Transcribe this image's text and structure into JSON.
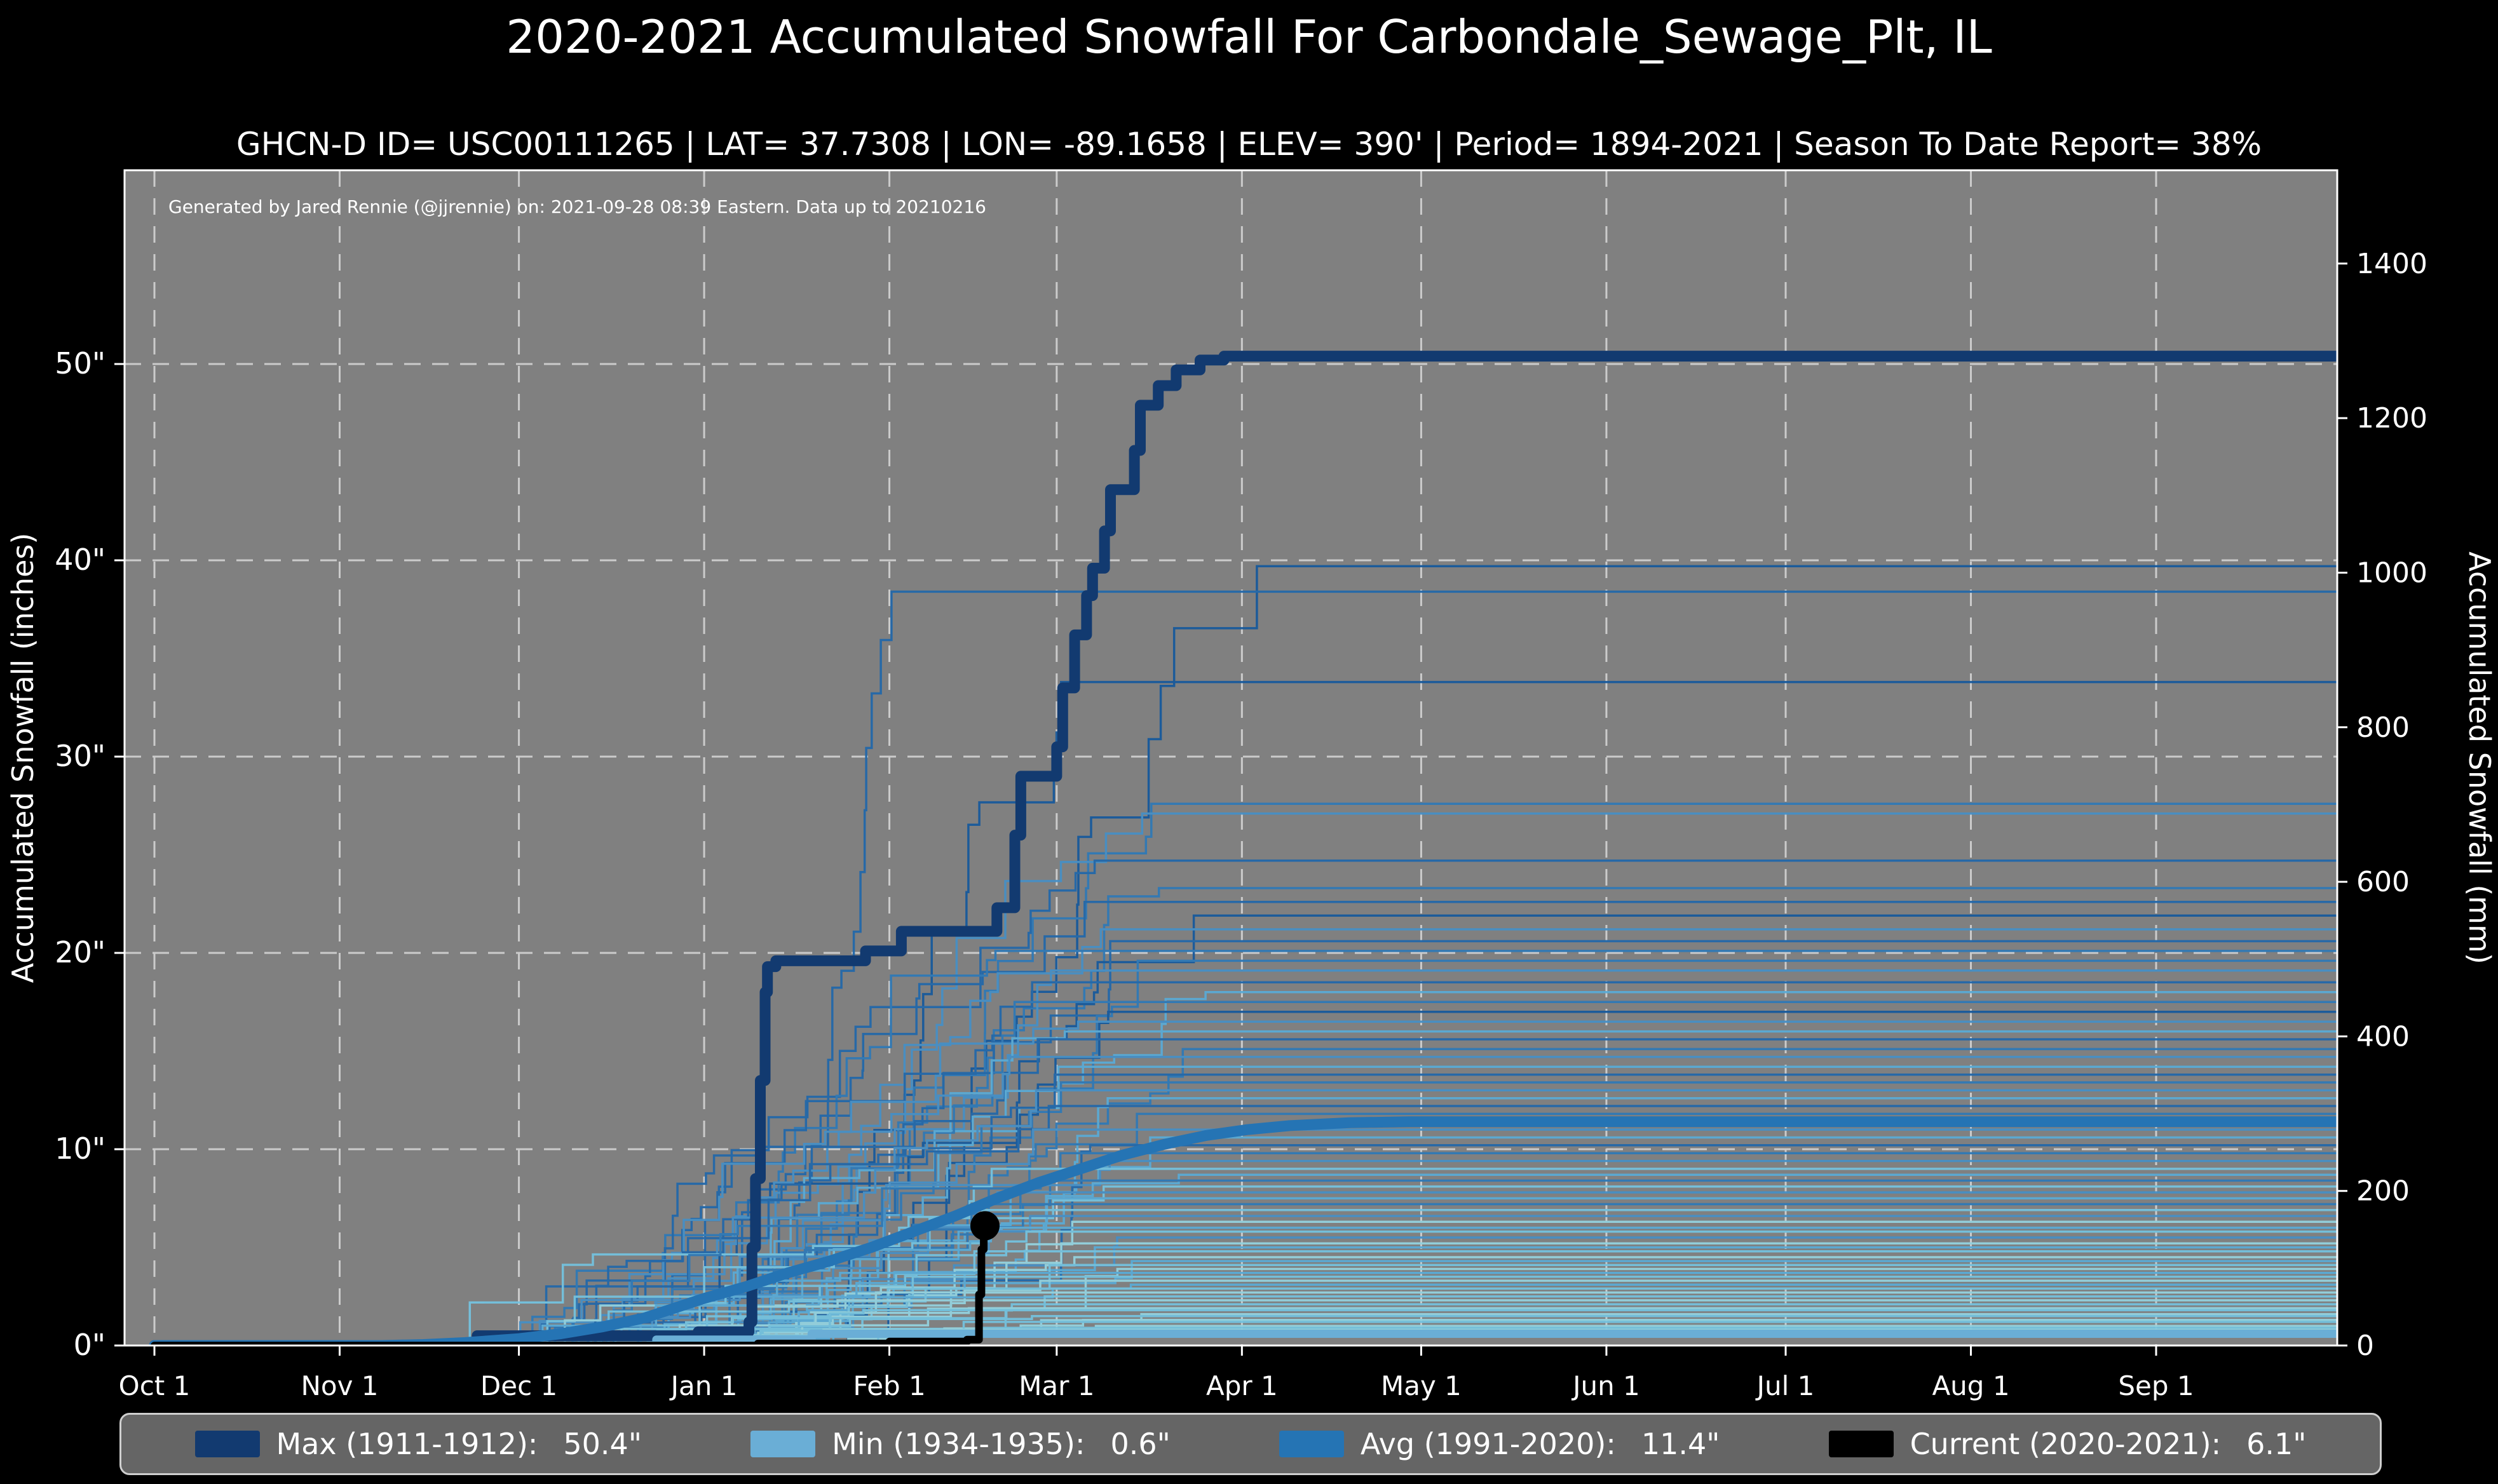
{
  "page": {
    "background": "#000000"
  },
  "header": {
    "title": "2020-2021 Accumulated Snowfall For Carbondale_Sewage_Plt, IL",
    "subtitle": "GHCN-D ID= USC00111265 | LAT= 37.7308 | LON= -89.1658 | ELEV= 390' | Period= 1894-2021 | Season To Date Report= 38%"
  },
  "legend": {
    "items": [
      {
        "label": "Max (1911-1912):",
        "value": "50.4\"",
        "color": "#123a70"
      },
      {
        "label": "Min (1934-1935):",
        "value": "0.6\"",
        "color": "#6aaed6"
      },
      {
        "label": "Avg (1991-2020):",
        "value": "11.4\"",
        "color": "#2574b4"
      },
      {
        "label": "Current (2020-2021):",
        "value": "6.1\"",
        "color": "#000000"
      }
    ]
  },
  "chart_data": {
    "type": "line",
    "title": "2020-2021 Accumulated Snowfall For Carbondale_Sewage_Plt, IL",
    "subtitle": "GHCN-D ID= USC00111265 | LAT= 37.7308 | LON= -89.1658 | ELEV= 390' | Period= 1894-2021 | Season To Date Report= 38%",
    "attribution": "Generated by Jared Rennie (@jjrennie) on: 2021-09-28 08:39 Eastern. Data up to 20210216",
    "plot_bg": "#808080",
    "grid_color": "#d9d9d9",
    "spine_color": "#ffffff",
    "text_color": "#ffffff",
    "x_axis": {
      "tick_labels": [
        "Oct 1",
        "Nov 1",
        "Dec 1",
        "Jan 1",
        "Feb 1",
        "Mar 1",
        "Apr 1",
        "May 1",
        "Jun 1",
        "Jul 1",
        "Aug 1",
        "Sep 1"
      ],
      "tick_days": [
        0,
        31,
        61,
        92,
        123,
        151,
        182,
        212,
        243,
        273,
        304,
        335
      ],
      "range_days": [
        0,
        365
      ]
    },
    "y_left": {
      "label": "Accumulated Snowfall (inches)",
      "tick_values": [
        0,
        10,
        20,
        30,
        40,
        50
      ],
      "tick_labels": [
        "0\"",
        "10\"",
        "20\"",
        "30\"",
        "40\"",
        "50\""
      ]
    },
    "y_right": {
      "label": "Accumulated Snowfall (mm)",
      "tick_values": [
        0,
        200,
        400,
        600,
        800,
        1000,
        1200,
        1400
      ]
    },
    "series": [
      {
        "name": "Max (1911-1912)",
        "total": "50.4\"",
        "color": "#123a70",
        "width": 17,
        "style": "step",
        "points": [
          [
            0,
            0
          ],
          [
            53,
            0
          ],
          [
            54,
            0.5
          ],
          [
            90,
            0.5
          ],
          [
            91,
            0.7
          ],
          [
            99,
            0.7
          ],
          [
            99.5,
            1.2
          ],
          [
            100,
            5
          ],
          [
            100.6,
            8.5
          ],
          [
            101.1,
            8.5
          ],
          [
            101.4,
            13.5
          ],
          [
            101.9,
            13.5
          ],
          [
            102.2,
            18
          ],
          [
            102.6,
            19.3
          ],
          [
            104,
            19.6
          ],
          [
            118,
            19.6
          ],
          [
            119,
            20.1
          ],
          [
            124,
            20.1
          ],
          [
            125,
            21.1
          ],
          [
            140,
            21.1
          ],
          [
            141,
            22.3
          ],
          [
            143,
            22.3
          ],
          [
            144,
            26
          ],
          [
            145,
            29
          ],
          [
            150,
            29
          ],
          [
            151,
            30.5
          ],
          [
            152,
            33.5
          ],
          [
            153,
            33.5
          ],
          [
            154,
            36.2
          ],
          [
            155,
            36.2
          ],
          [
            156,
            38.2
          ],
          [
            157,
            39.6
          ],
          [
            158,
            39.6
          ],
          [
            159,
            41.5
          ],
          [
            160,
            43.6
          ],
          [
            163,
            43.6
          ],
          [
            164,
            45.6
          ],
          [
            165,
            47.9
          ],
          [
            167,
            47.9
          ],
          [
            168,
            48.9
          ],
          [
            170,
            48.9
          ],
          [
            171,
            49.7
          ],
          [
            174,
            49.7
          ],
          [
            175,
            50.2
          ],
          [
            178,
            50.2
          ],
          [
            179,
            50.4
          ],
          [
            366,
            50.4
          ]
        ]
      },
      {
        "name": "Min (1934-1935)",
        "total": "0.6\"",
        "color": "#6aaed6",
        "width": 13,
        "style": "step",
        "points": [
          [
            0,
            0
          ],
          [
            83,
            0
          ],
          [
            84,
            0.3
          ],
          [
            109,
            0.3
          ],
          [
            110,
            0.6
          ],
          [
            366,
            0.6
          ]
        ]
      },
      {
        "name": "Avg (1991-2020)",
        "total": "11.4\"",
        "color": "#2574b4",
        "width": 17,
        "style": "line",
        "points": [
          [
            0,
            0
          ],
          [
            38,
            0
          ],
          [
            45,
            0.05
          ],
          [
            52,
            0.15
          ],
          [
            61,
            0.35
          ],
          [
            68,
            0.6
          ],
          [
            75,
            0.95
          ],
          [
            82,
            1.4
          ],
          [
            92,
            2.4
          ],
          [
            99,
            3.0
          ],
          [
            106,
            3.7
          ],
          [
            113,
            4.3
          ],
          [
            120,
            5.0
          ],
          [
            127,
            5.8
          ],
          [
            134,
            6.6
          ],
          [
            141,
            7.5
          ],
          [
            148,
            8.3
          ],
          [
            155,
            9.0
          ],
          [
            162,
            9.7
          ],
          [
            169,
            10.25
          ],
          [
            176,
            10.7
          ],
          [
            183,
            11.0
          ],
          [
            190,
            11.2
          ],
          [
            200,
            11.35
          ],
          [
            210,
            11.4
          ],
          [
            366,
            11.4
          ]
        ]
      },
      {
        "name": "Current (2020-2021)",
        "total": "6.1\"",
        "color": "#000000",
        "width": 12,
        "style": "step",
        "points": [
          [
            0,
            0
          ],
          [
            100,
            0
          ],
          [
            101,
            0.1
          ],
          [
            122,
            0.1
          ],
          [
            123,
            0.2
          ],
          [
            135,
            0.2
          ],
          [
            136,
            0.3
          ],
          [
            137.6,
            0.3
          ],
          [
            138,
            2.6
          ],
          [
            138.4,
            4.9
          ],
          [
            138.8,
            6.1
          ],
          [
            139,
            6.1
          ]
        ],
        "end_marker": {
          "day": 139,
          "value": 6.1,
          "radius": 23
        }
      }
    ],
    "historical": {
      "palette": [
        "#93d2de",
        "#74c2de",
        "#5aabd6",
        "#478fc5",
        "#2f79b6",
        "#2368aa",
        "#175a9c"
      ],
      "line_width": 3.5,
      "season_format": "[final_inches, start_day, end_day, palette_index]",
      "seasons": [
        [
          39.7,
          118,
          186,
          6
        ],
        [
          38.4,
          96,
          125,
          5
        ],
        [
          33.8,
          116,
          152,
          6
        ],
        [
          27.6,
          100,
          170,
          4
        ],
        [
          27.1,
          88,
          168,
          3
        ],
        [
          24.7,
          75,
          165,
          5
        ],
        [
          23.3,
          92,
          172,
          4
        ],
        [
          22.6,
          60,
          158,
          5
        ],
        [
          21.9,
          105,
          175,
          6
        ],
        [
          21.2,
          70,
          160,
          3
        ],
        [
          20.6,
          85,
          168,
          5
        ],
        [
          20.1,
          55,
          150,
          4
        ],
        [
          19.6,
          95,
          172,
          4
        ],
        [
          19.1,
          78,
          162,
          3
        ],
        [
          18.5,
          66,
          155,
          5
        ],
        [
          18.0,
          102,
          178,
          2
        ],
        [
          17.5,
          58,
          148,
          4
        ],
        [
          17.0,
          90,
          170,
          6
        ],
        [
          16.5,
          72,
          160,
          3
        ],
        [
          16.0,
          84,
          166,
          2
        ],
        [
          15.6,
          63,
          152,
          5
        ],
        [
          15.1,
          98,
          174,
          4
        ],
        [
          14.7,
          52,
          146,
          3
        ],
        [
          14.2,
          88,
          168,
          2
        ],
        [
          13.8,
          70,
          158,
          5
        ],
        [
          13.4,
          94,
          172,
          4
        ],
        [
          13.0,
          60,
          150,
          3
        ],
        [
          12.6,
          80,
          164,
          2
        ],
        [
          12.2,
          68,
          156,
          5
        ],
        [
          11.8,
          86,
          166,
          4
        ],
        [
          11.0,
          56,
          148,
          3
        ],
        [
          10.6,
          92,
          170,
          2
        ],
        [
          10.2,
          74,
          158,
          5
        ],
        [
          9.8,
          64,
          152,
          4
        ],
        [
          9.4,
          82,
          164,
          3
        ],
        [
          9.0,
          50,
          144,
          1
        ],
        [
          8.7,
          96,
          172,
          2
        ],
        [
          8.4,
          70,
          156,
          4
        ],
        [
          8.1,
          86,
          166,
          1
        ],
        [
          7.8,
          58,
          148,
          3
        ],
        [
          7.5,
          78,
          160,
          2
        ],
        [
          7.2,
          90,
          168,
          4
        ],
        [
          6.9,
          62,
          150,
          1
        ],
        [
          6.6,
          84,
          164,
          3
        ],
        [
          6.3,
          72,
          156,
          0
        ],
        [
          6.0,
          94,
          170,
          2
        ],
        [
          5.8,
          54,
          146,
          1
        ],
        [
          5.5,
          80,
          162,
          3
        ],
        [
          5.2,
          66,
          152,
          0
        ],
        [
          5.0,
          88,
          166,
          2
        ],
        [
          4.8,
          60,
          148,
          1
        ],
        [
          4.5,
          76,
          158,
          0
        ],
        [
          4.3,
          92,
          168,
          2
        ],
        [
          4.1,
          64,
          150,
          1
        ],
        [
          3.9,
          82,
          162,
          0
        ],
        [
          3.7,
          56,
          144,
          2
        ],
        [
          3.5,
          86,
          164,
          1
        ],
        [
          3.3,
          70,
          154,
          0
        ],
        [
          3.1,
          90,
          166,
          2
        ],
        [
          2.9,
          62,
          148,
          1
        ],
        [
          2.7,
          80,
          160,
          0
        ],
        [
          2.5,
          68,
          152,
          1
        ],
        [
          2.3,
          88,
          164,
          0
        ],
        [
          2.1,
          58,
          144,
          1
        ],
        [
          1.9,
          84,
          160,
          0
        ],
        [
          1.8,
          72,
          154,
          1
        ],
        [
          1.6,
          92,
          166,
          0
        ],
        [
          1.5,
          64,
          148,
          1
        ],
        [
          1.3,
          82,
          158,
          0
        ],
        [
          1.2,
          70,
          150,
          1
        ],
        [
          1.0,
          90,
          162,
          0
        ],
        [
          0.9,
          60,
          144,
          1
        ],
        [
          0.8,
          78,
          156,
          0
        ],
        [
          0.7,
          86,
          160,
          1
        ]
      ]
    }
  }
}
